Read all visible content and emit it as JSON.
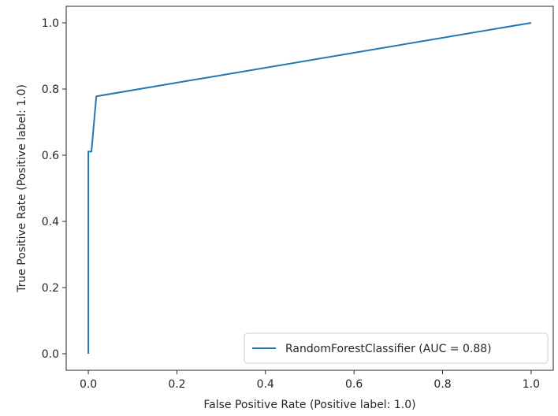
{
  "chart_data": {
    "type": "line",
    "xlabel": "False Positive Rate (Positive label: 1.0)",
    "ylabel": "True Positive Rate (Positive label: 1.0)",
    "xlim": [
      -0.05,
      1.05
    ],
    "ylim": [
      -0.05,
      1.05
    ],
    "x_ticks": [
      0.0,
      0.2,
      0.4,
      0.6,
      0.8,
      1.0
    ],
    "y_ticks": [
      0.0,
      0.2,
      0.4,
      0.6,
      0.8,
      1.0
    ],
    "x_tick_labels": [
      "0.0",
      "0.2",
      "0.4",
      "0.6",
      "0.8",
      "1.0"
    ],
    "y_tick_labels": [
      "0.0",
      "0.2",
      "0.4",
      "0.6",
      "0.8",
      "1.0"
    ],
    "grid": false,
    "legend_position": "lower-right",
    "series": [
      {
        "name": "RandomForestClassifier (AUC = 0.88)",
        "color": "#1f77b4",
        "x": [
          0.0,
          0.0,
          0.007,
          0.018,
          1.0
        ],
        "y": [
          0.0,
          0.611,
          0.611,
          0.778,
          1.0
        ]
      }
    ]
  }
}
